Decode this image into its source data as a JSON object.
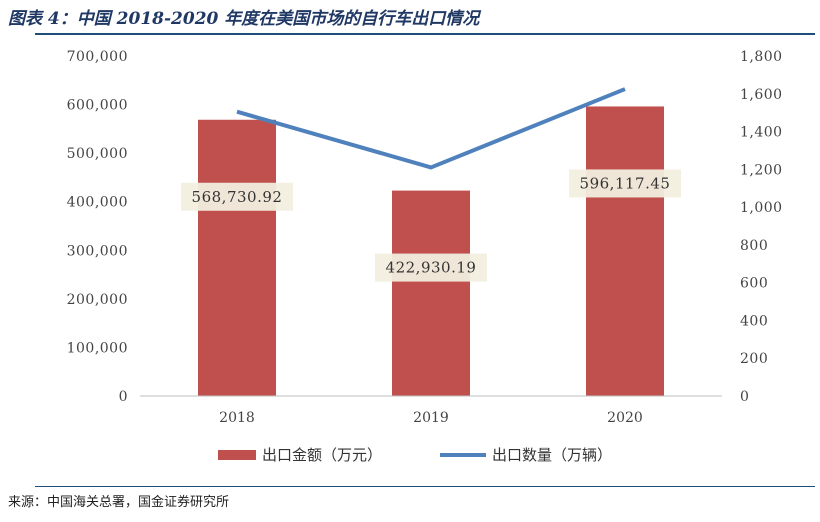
{
  "title": "图表 4：中国 2018-2020 年度在美国市场的自行车出口情况",
  "source": "来源：中国海关总署，国金证券研究所",
  "colors": {
    "bar": "#c0504d",
    "line": "#4f81bd",
    "title": "#1f3864"
  },
  "chart_data": {
    "type": "bar",
    "categories": [
      "2018",
      "2019",
      "2020"
    ],
    "series": [
      {
        "name": "出口金额（万元）",
        "type": "bar",
        "axis": "left",
        "values": [
          568730.92,
          422930.19,
          596117.45
        ],
        "labels": [
          "568,730.92",
          "422,930.19",
          "596,117.45"
        ]
      },
      {
        "name": "出口数量（万辆）",
        "type": "line",
        "axis": "right",
        "values": [
          1505,
          1210,
          1625
        ]
      }
    ],
    "ylim_left": [
      0,
      700000
    ],
    "yticks_left": [
      "0",
      "100,000",
      "200,000",
      "300,000",
      "400,000",
      "500,000",
      "600,000",
      "700,000"
    ],
    "ylim_right": [
      0,
      1800
    ],
    "yticks_right": [
      "0",
      "200",
      "400",
      "600",
      "800",
      "1,000",
      "1,200",
      "1,400",
      "1,600",
      "1,800"
    ],
    "legend_position": "bottom",
    "grid": false
  }
}
